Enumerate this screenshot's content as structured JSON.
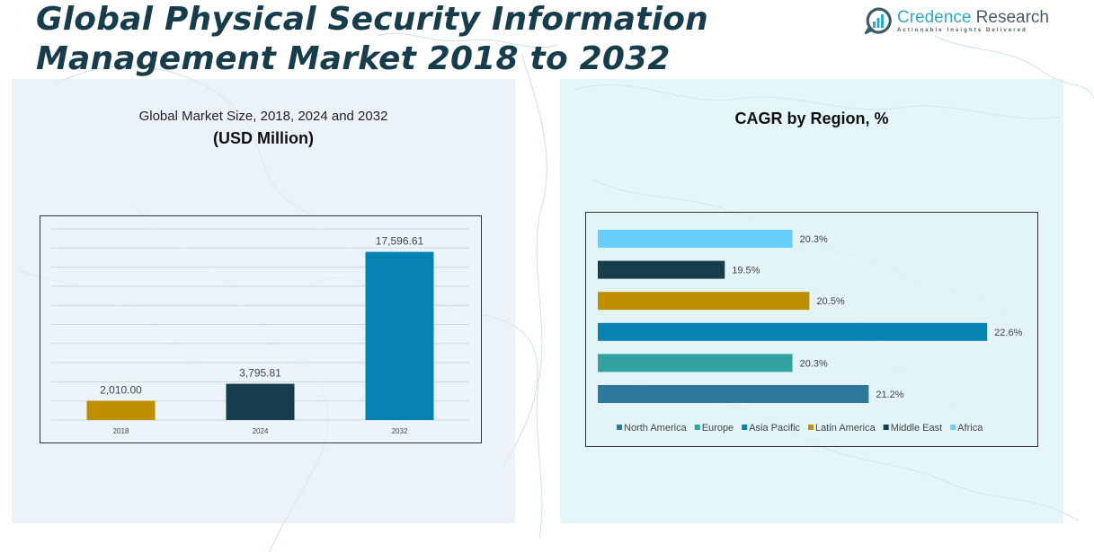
{
  "header": {
    "title_line1": "Global Physical Security Information",
    "title_line2": "Management Market 2018 to 2032"
  },
  "logo": {
    "brand_part1": "Credence",
    "brand_part2": " Research",
    "tagline": "Actionable Insights Delivered",
    "icon": "bar-chart-speech-bubble-icon"
  },
  "left_panel": {
    "subtitle": "Global Market Size, 2018, 2024 and 2032",
    "unit": "(USD Million)"
  },
  "right_panel": {
    "title": "CAGR by Region, %"
  },
  "chart_data": [
    {
      "type": "bar",
      "title": "Global Market Size, 2018, 2024 and 2032",
      "ylabel": "USD Million",
      "xlabel": "",
      "categories": [
        "2018",
        "2024",
        "2032"
      ],
      "values": [
        2010.0,
        3795.81,
        17596.61
      ],
      "value_labels": [
        "2,010.00",
        "3,795.81",
        "17,596.61"
      ],
      "colors": [
        "#c08f00",
        "#173d4d",
        "#0783b2"
      ],
      "ylim": [
        0,
        20000
      ],
      "grid": true,
      "gridlines": 10,
      "legend": "none"
    },
    {
      "type": "bar",
      "orientation": "horizontal",
      "title": "CAGR by Region, %",
      "categories": [
        "North America",
        "Europe",
        "Asia Pacific",
        "Latin America",
        "Middle East",
        "Africa"
      ],
      "values": [
        21.2,
        20.3,
        22.6,
        20.5,
        19.5,
        20.3
      ],
      "value_labels": [
        "21.2%",
        "20.3%",
        "22.6%",
        "20.5%",
        "19.5%",
        "20.3%"
      ],
      "colors": [
        "#2e7a9a",
        "#33a3a2",
        "#0783b2",
        "#c08f00",
        "#173d4d",
        "#66d0fb"
      ],
      "xlim": [
        18.0,
        22.8
      ],
      "grid": false,
      "legend": "bottom"
    }
  ]
}
